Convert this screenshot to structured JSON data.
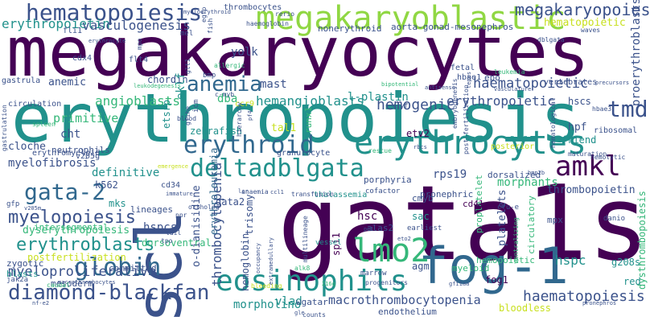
{
  "palette": {
    "deep_purple": "#440154",
    "indigo": "#3b528b",
    "blue": "#31688e",
    "teal": "#21918c",
    "green": "#35b779",
    "lime": "#90d743",
    "yellow": "#c8e020"
  },
  "words": [
    {
      "text": "megakaryocytes",
      "color": "#440154"
    },
    {
      "text": "erythropoiesis",
      "color": "#21918c"
    },
    {
      "text": "gata1s",
      "color": "#440154"
    },
    {
      "text": "scl",
      "color": "#3b528b"
    },
    {
      "text": "fog-1",
      "color": "#31688e"
    },
    {
      "text": "megakaryoblastic",
      "color": "#90d743"
    },
    {
      "text": "erythrocytes",
      "color": "#21918c"
    },
    {
      "text": "hematopoiesis",
      "color": "#3b528b"
    },
    {
      "text": "eosinophils",
      "color": "#21918c"
    },
    {
      "text": "lmo2",
      "color": "#35b779"
    },
    {
      "text": "diamond-blackfan",
      "color": "#3b528b"
    },
    {
      "text": "erythroid",
      "color": "#31688e"
    },
    {
      "text": "deltadblgata",
      "color": "#21918c"
    },
    {
      "text": "anemia",
      "color": "#31688e"
    },
    {
      "text": "amkl",
      "color": "#440154"
    },
    {
      "text": "gata-2",
      "color": "#31688e"
    },
    {
      "text": "globin",
      "color": "#31688e"
    },
    {
      "text": "myelopoiesis",
      "color": "#3b528b"
    },
    {
      "text": "erythroblasts",
      "color": "#21918c"
    },
    {
      "text": "tmd",
      "color": "#3b528b"
    },
    {
      "text": "megakaryopoiesis",
      "color": "#3b528b"
    },
    {
      "text": "erythropoietin",
      "color": "#21918c"
    },
    {
      "text": "vasculogenesis",
      "color": "#3b528b"
    },
    {
      "text": "hemogenic",
      "color": "#3b528b"
    },
    {
      "text": "haematopoietic",
      "color": "#3b528b"
    },
    {
      "text": "erythropoietic",
      "color": "#3b528b"
    },
    {
      "text": "hemangioblasts",
      "color": "#21918c"
    },
    {
      "text": "primitive",
      "color": "#35b779"
    },
    {
      "text": "angioblasts",
      "color": "#35b779"
    },
    {
      "text": "myeloproliferative",
      "color": "#3b528b"
    },
    {
      "text": "haematopoiesis",
      "color": "#3b528b"
    },
    {
      "text": "thrombocytopenia",
      "color": "#3b528b"
    },
    {
      "text": "macrothrombocytopenia",
      "color": "#3b528b"
    },
    {
      "text": "morpholino",
      "color": "#21918c"
    },
    {
      "text": "nonerythroid",
      "color": "#3b528b"
    },
    {
      "text": "aorta-gonad-mesonephros",
      "color": "#3b528b"
    },
    {
      "text": "hematopoietic",
      "color": "#c8e020"
    },
    {
      "text": "erythroleukemia",
      "color": "#31688e"
    },
    {
      "text": "myelofibrosis",
      "color": "#3b528b"
    },
    {
      "text": "definitive",
      "color": "#21918c"
    },
    {
      "text": "thrombopoietin",
      "color": "#3b528b"
    },
    {
      "text": "morphants",
      "color": "#35b779"
    },
    {
      "text": "proerythroblasts",
      "color": "#3b528b"
    },
    {
      "text": "hemoglobin",
      "color": "#3b528b"
    },
    {
      "text": "o-dianisidine",
      "color": "#3b528b"
    },
    {
      "text": "hemopoietic",
      "color": "#35b779"
    },
    {
      "text": "dysthrombopoiesis",
      "color": "#35b779"
    },
    {
      "text": "dyserythropoiesis",
      "color": "#35b779"
    },
    {
      "text": "dysthrombopoiesis",
      "color": "#35b779"
    },
    {
      "text": "postfertilization",
      "color": "#c8e020"
    },
    {
      "text": "neutrophils",
      "color": "#3b528b"
    },
    {
      "text": "zebrafish",
      "color": "#21918c"
    },
    {
      "text": "yolk",
      "color": "#3b528b"
    },
    {
      "text": "mast",
      "color": "#3b528b"
    },
    {
      "text": "dba",
      "color": "#35b779"
    },
    {
      "text": "l-plastin",
      "color": "#21918c"
    },
    {
      "text": "hpf",
      "color": "#3b528b"
    },
    {
      "text": "hscs",
      "color": "#3b528b"
    },
    {
      "text": "friend",
      "color": "#21918c"
    },
    {
      "text": "tal1",
      "color": "#c8e020"
    },
    {
      "text": "etv2",
      "color": "#440154"
    },
    {
      "text": "runx1",
      "color": "#35b779"
    },
    {
      "text": "epo",
      "color": "#3b528b"
    },
    {
      "text": "hsc",
      "color": "#440154"
    },
    {
      "text": "rps19",
      "color": "#3b528b"
    },
    {
      "text": "porphyria",
      "color": "#3b528b"
    },
    {
      "text": "gata2",
      "color": "#3b528b"
    },
    {
      "text": "trisomy",
      "color": "#3b528b"
    },
    {
      "text": "agm",
      "color": "#3b528b"
    },
    {
      "text": "vlad",
      "color": "#21918c"
    },
    {
      "text": "wgatar",
      "color": "#3b528b"
    },
    {
      "text": "endothelium",
      "color": "#3b528b"
    },
    {
      "text": "fog1",
      "color": "#440154"
    },
    {
      "text": "hspc",
      "color": "#21918c"
    },
    {
      "text": "hspcs",
      "color": "#3b528b"
    },
    {
      "text": "red",
      "color": "#21918c"
    },
    {
      "text": "mpx",
      "color": "#3b528b"
    },
    {
      "text": "g208s",
      "color": "#21918c"
    },
    {
      "text": "mks",
      "color": "#21918c"
    },
    {
      "text": "cht",
      "color": "#3b528b"
    },
    {
      "text": "k562",
      "color": "#3b528b"
    },
    {
      "text": "cloche",
      "color": "#3b528b"
    },
    {
      "text": "anemic",
      "color": "#3b528b"
    },
    {
      "text": "chordin",
      "color": "#3b528b"
    },
    {
      "text": "eklf",
      "color": "#21918c"
    },
    {
      "text": "etsrp",
      "color": "#21918c"
    },
    {
      "text": "platelets",
      "color": "#3b528b"
    },
    {
      "text": "proplatelet",
      "color": "#35b779"
    },
    {
      "text": "circulatory",
      "color": "#35b779"
    },
    {
      "text": "blasts",
      "color": "#21918c"
    },
    {
      "text": "zygotic",
      "color": "#3b528b"
    },
    {
      "text": "committed",
      "color": "#3b528b"
    },
    {
      "text": "mesoderm",
      "color": "#3b528b"
    },
    {
      "text": "dorsoventral",
      "color": "#35b779"
    },
    {
      "text": "lineages",
      "color": "#3b528b"
    },
    {
      "text": "intersegmental",
      "color": "#35b779"
    },
    {
      "text": "erythromyeloid",
      "color": "#3b528b"
    },
    {
      "text": "ribosomal",
      "color": "#3b528b"
    },
    {
      "text": "dorsalized",
      "color": "#3b528b"
    },
    {
      "text": "pronephric",
      "color": "#3b528b"
    },
    {
      "text": "thalassemia",
      "color": "#21918c"
    },
    {
      "text": "myeloid",
      "color": "#35b779"
    },
    {
      "text": "bloodless",
      "color": "#c8e020"
    },
    {
      "text": "granulocyte",
      "color": "#3b528b"
    },
    {
      "text": "thrombocytes",
      "color": "#3b528b"
    },
    {
      "text": "posterior",
      "color": "#c8e020"
    },
    {
      "text": "circulation",
      "color": "#3b528b"
    },
    {
      "text": "gastrula",
      "color": "#3b528b"
    },
    {
      "text": "vertebrates",
      "color": "#3b528b"
    },
    {
      "text": "fetal",
      "color": "#3b528b"
    },
    {
      "text": "hbae1",
      "color": "#3b528b"
    },
    {
      "text": "sac",
      "color": "#21918c"
    },
    {
      "text": "cmyb",
      "color": "#3b528b"
    },
    {
      "text": "cd41",
      "color": "#440154"
    },
    {
      "text": "cd34",
      "color": "#3b528b"
    },
    {
      "text": "v205g",
      "color": "#3b528b"
    },
    {
      "text": "cdx4",
      "color": "#3b528b"
    },
    {
      "text": "flt4",
      "color": "#3b528b"
    },
    {
      "text": "alas2",
      "color": "#3b528b"
    },
    {
      "text": "spi1",
      "color": "#440154"
    },
    {
      "text": "earliest",
      "color": "#3b528b"
    },
    {
      "text": "cofactor",
      "color": "#3b528b"
    },
    {
      "text": "marrow",
      "color": "#3b528b"
    },
    {
      "text": "counts",
      "color": "#3b528b"
    },
    {
      "text": "vessel",
      "color": "#21918c"
    },
    {
      "text": "progenitors",
      "color": "#3b528b"
    },
    {
      "text": "bleeding",
      "color": "#c8e020"
    },
    {
      "text": "anaemia",
      "color": "#3b528b"
    },
    {
      "text": "fli1",
      "color": "#3b528b"
    },
    {
      "text": "mel",
      "color": "#3b528b"
    },
    {
      "text": "jak2a",
      "color": "#3b528b"
    },
    {
      "text": "gfp",
      "color": "#3b528b"
    },
    {
      "text": "hemolytic",
      "color": "#3b528b"
    },
    {
      "text": "hbae3",
      "color": "#3b528b"
    },
    {
      "text": "cfu-e",
      "color": "#3b528b"
    },
    {
      "text": "danio",
      "color": "#3b528b"
    },
    {
      "text": "ccr9",
      "color": "#c8e020"
    },
    {
      "text": "bmp",
      "color": "#3b528b"
    },
    {
      "text": "c-myb",
      "color": "#3b528b"
    },
    {
      "text": "icm",
      "color": "#3b528b"
    },
    {
      "text": "gfihe",
      "color": "#3b528b"
    },
    {
      "text": "hierarchy",
      "color": "#3b528b"
    },
    {
      "text": "mpo",
      "color": "#3b528b"
    },
    {
      "text": "glt1",
      "color": "#3b528b"
    },
    {
      "text": "fish",
      "color": "#3b528b"
    },
    {
      "text": "haemoglobin",
      "color": "#3b528b"
    },
    {
      "text": "rerio",
      "color": "#3b528b"
    },
    {
      "text": "egfp",
      "color": "#3b528b"
    },
    {
      "text": "myeloerythroid",
      "color": "#3b528b"
    },
    {
      "text": "allergic",
      "color": "#35b779"
    },
    {
      "text": "leukemia",
      "color": "#35b779"
    },
    {
      "text": "maturation",
      "color": "#3b528b"
    },
    {
      "text": "dblgata",
      "color": "#3b528b"
    },
    {
      "text": "waves",
      "color": "#3b528b"
    },
    {
      "text": "hematological",
      "color": "#3b528b"
    },
    {
      "text": "embryogenesis",
      "color": "#3b528b"
    },
    {
      "text": "post-fertilization",
      "color": "#3b528b"
    },
    {
      "text": "gastrulation",
      "color": "#3b528b"
    },
    {
      "text": "spleen",
      "color": "#35b779"
    },
    {
      "text": "blood",
      "color": "#3b528b"
    },
    {
      "text": "ventralizing",
      "color": "#35b779"
    },
    {
      "text": "rescue",
      "color": "#35b779"
    },
    {
      "text": "multilineage",
      "color": "#3b528b"
    },
    {
      "text": "transfusion",
      "color": "#3b528b"
    },
    {
      "text": "erythrocyte",
      "color": "#3b528b"
    },
    {
      "text": "leukodegenesis",
      "color": "#35b779"
    },
    {
      "text": "immature",
      "color": "#3b528b"
    },
    {
      "text": "ortholog",
      "color": "#3b528b"
    },
    {
      "text": "ppr",
      "color": "#3b528b"
    },
    {
      "text": "tail",
      "color": "#3b528b"
    },
    {
      "text": "tpo",
      "color": "#3b528b"
    },
    {
      "text": "caudal",
      "color": "#35b779"
    },
    {
      "text": "nf-e2",
      "color": "#3b528b"
    },
    {
      "text": "pronephros",
      "color": "#3b528b"
    },
    {
      "text": "macrothrombocytes",
      "color": "#3b528b"
    },
    {
      "text": "occupancy",
      "color": "#3b528b"
    },
    {
      "text": "extramedullary",
      "color": "#3b528b"
    },
    {
      "text": "cripped",
      "color": "#3b528b"
    },
    {
      "text": "precursors",
      "color": "#3b528b"
    },
    {
      "text": "alk8",
      "color": "#35b779"
    },
    {
      "text": "v205m",
      "color": "#3b528b"
    },
    {
      "text": "eryf",
      "color": "#3b528b"
    },
    {
      "text": "antisense",
      "color": "#3b528b"
    },
    {
      "text": "emergence",
      "color": "#c8e020"
    },
    {
      "text": "pf4",
      "color": "#3b528b"
    },
    {
      "text": "rbcs",
      "color": "#3b528b"
    },
    {
      "text": "bmp2b",
      "color": "#3b528b"
    },
    {
      "text": "tepes",
      "color": "#3b528b"
    },
    {
      "text": "vasculature",
      "color": "#3b528b"
    },
    {
      "text": "bipotential",
      "color": "#35b779"
    },
    {
      "text": "lcr",
      "color": "#3b528b"
    },
    {
      "text": "ccl1",
      "color": "#3b528b"
    },
    {
      "text": "216q",
      "color": "#35b779"
    },
    {
      "text": "gfi1aa",
      "color": "#3b528b"
    },
    {
      "text": "eto2",
      "color": "#3b528b"
    },
    {
      "text": "gle",
      "color": "#3b528b"
    },
    {
      "text": "meis1",
      "color": "#3b528b"
    },
    {
      "text": "hbbe1",
      "color": "#3b528b"
    },
    {
      "text": "cd",
      "color": "#3b528b"
    },
    {
      "text": "pu1",
      "color": "#3b528b"
    }
  ]
}
